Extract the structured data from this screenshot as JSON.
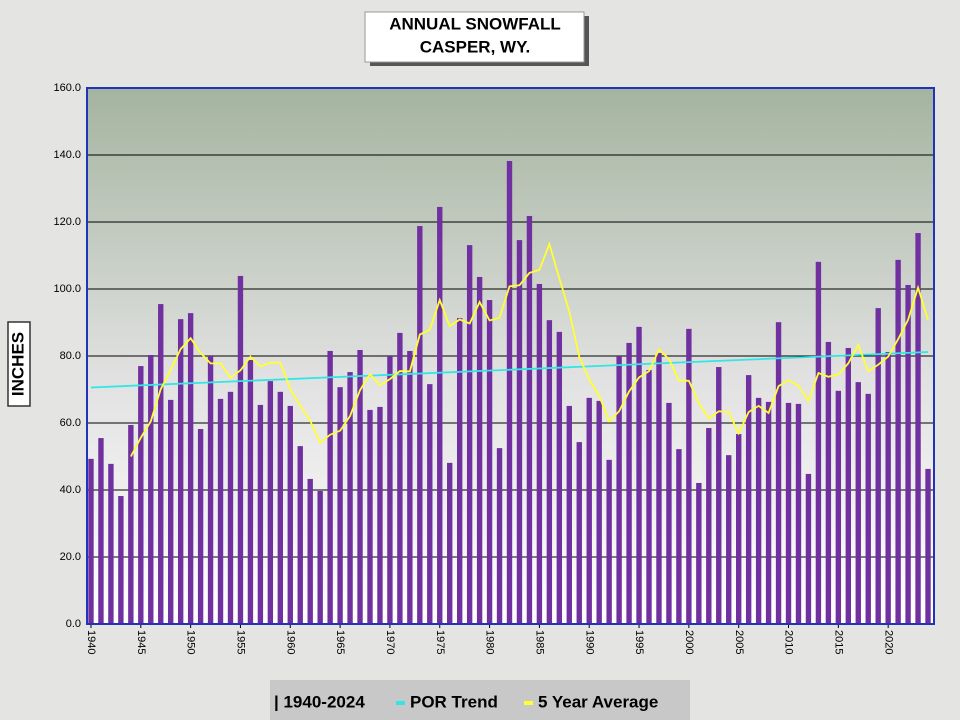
{
  "chart_data": {
    "type": "bar",
    "title": [
      "ANNUAL  SNOWFALL",
      "CASPER, WY."
    ],
    "y_label": "INCHES",
    "x": [
      1940,
      1941,
      1942,
      1943,
      1944,
      1945,
      1946,
      1947,
      1948,
      1949,
      1950,
      1951,
      1952,
      1953,
      1954,
      1955,
      1956,
      1957,
      1958,
      1959,
      1960,
      1961,
      1962,
      1963,
      1964,
      1965,
      1966,
      1967,
      1968,
      1969,
      1970,
      1971,
      1972,
      1973,
      1974,
      1975,
      1976,
      1977,
      1978,
      1979,
      1980,
      1981,
      1982,
      1983,
      1984,
      1985,
      1986,
      1987,
      1988,
      1989,
      1990,
      1991,
      1992,
      1993,
      1994,
      1995,
      1996,
      1997,
      1998,
      1999,
      2000,
      2001,
      2002,
      2003,
      2004,
      2005,
      2006,
      2007,
      2008,
      2009,
      2010,
      2011,
      2012,
      2013,
      2014,
      2015,
      2016,
      2017,
      2018,
      2019,
      2020,
      2021,
      2022,
      2023,
      2024
    ],
    "series": [
      {
        "name": "| 1940-2024",
        "color": "#7030a0",
        "values": [
          49.3,
          55.5,
          47.8,
          38.2,
          59.4,
          77.0,
          80.3,
          95.5,
          66.9,
          91.0,
          92.8,
          58.2,
          80.0,
          67.2,
          69.3,
          103.9,
          78.8,
          65.4,
          72.5,
          69.3,
          65.1,
          53.1,
          43.3,
          39.7,
          81.5,
          70.7,
          75.2,
          81.8,
          63.9,
          64.8,
          80.0,
          86.9,
          81.5,
          118.8,
          71.6,
          124.5,
          48.1,
          91.3,
          113.1,
          103.6,
          96.7,
          52.5,
          138.2,
          114.6,
          121.8,
          101.5,
          90.7,
          87.2,
          65.1,
          54.3,
          67.5,
          66.6,
          49.0,
          80.0,
          83.9,
          88.7,
          75.8,
          80.9,
          66.0,
          52.2,
          88.1,
          42.1,
          58.5,
          76.7,
          50.4,
          56.7,
          74.3,
          67.5,
          66.3,
          90.1,
          66.0,
          65.7,
          44.8,
          108.1,
          84.2,
          69.6,
          82.4,
          72.2,
          68.7,
          94.3,
          81.2,
          108.7,
          101.2,
          116.7,
          46.3
        ]
      },
      {
        "name": "POR Trend",
        "color": "#33e6e6",
        "type": "line",
        "x": [
          1940,
          2024
        ],
        "values": [
          70.6,
          81.2
        ]
      },
      {
        "name": "5 Year Average",
        "color": "#ffff33",
        "type": "line",
        "values": [
          null,
          null,
          null,
          null,
          50.0,
          55.6,
          60.5,
          70.1,
          75.8,
          82.1,
          85.3,
          80.9,
          77.8,
          77.8,
          73.5,
          75.7,
          79.8,
          76.9,
          78.0,
          78.0,
          70.2,
          65.1,
          60.7,
          54.1,
          56.5,
          57.7,
          62.1,
          69.8,
          74.6,
          71.3,
          73.1,
          75.5,
          75.4,
          86.4,
          87.8,
          96.7,
          88.9,
          90.9,
          89.7,
          96.1,
          90.6,
          91.4,
          100.8,
          101.1,
          104.8,
          105.7,
          113.4,
          103.2,
          93.3,
          79.8,
          73.0,
          68.1,
          60.5,
          63.5,
          69.4,
          73.6,
          75.5,
          81.9,
          79.1,
          72.7,
          72.6,
          65.9,
          61.4,
          63.5,
          63.2,
          56.9,
          63.3,
          65.1,
          63.0,
          71.0,
          72.8,
          71.1,
          66.6,
          74.9,
          73.8,
          74.5,
          77.8,
          83.3,
          75.4,
          77.4,
          79.8,
          85.0,
          90.8,
          100.4,
          90.8
        ]
      }
    ],
    "xlim": [
      1939.6,
      2024.6
    ],
    "xticks": [
      1940,
      1945,
      1950,
      1955,
      1960,
      1965,
      1970,
      1975,
      1980,
      1985,
      1990,
      1995,
      2000,
      2005,
      2010,
      2015,
      2020
    ],
    "ylim": [
      0,
      160
    ],
    "yticks": [
      {
        "value": 0,
        "label": "0.0"
      },
      {
        "value": 20,
        "label": "20.0"
      },
      {
        "value": 40,
        "label": "40.0"
      },
      {
        "value": 60,
        "label": "60.0"
      },
      {
        "value": 80,
        "label": "80.0"
      },
      {
        "value": 100,
        "label": "100.0"
      },
      {
        "value": 120,
        "label": "120.0"
      },
      {
        "value": 140,
        "label": "140.0"
      },
      {
        "value": 160,
        "label": "160.0"
      }
    ],
    "grid": true
  }
}
